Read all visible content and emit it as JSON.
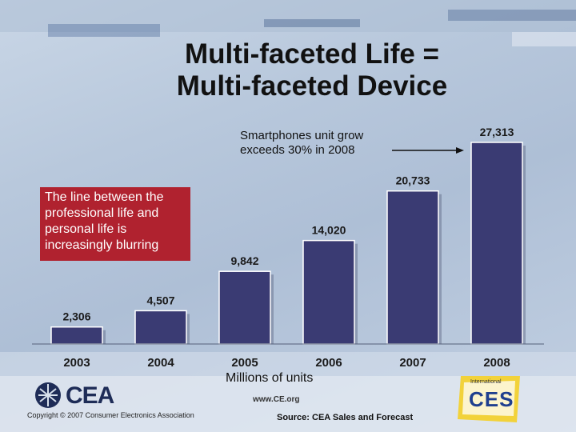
{
  "title_lines": [
    "Multi-faceted Life =",
    "Multi-faceted Device"
  ],
  "callout": {
    "lines": [
      "The line between the",
      "professional life and",
      "personal life is",
      "increasingly blurring"
    ],
    "color": "#b0222f"
  },
  "annotation": {
    "lines": [
      "Smartphones unit grow",
      "exceeds 30% in 2008"
    ]
  },
  "units_label": "Millions of units",
  "source": "Source: CEA Sales and Forecast",
  "footer": {
    "copyright": "Copyright © 2007 Consumer Electronics Association",
    "website": "www.CE.org",
    "cea_logo_text": "CEA",
    "ces_logo_text": "CES",
    "ces_logo_small": "International"
  },
  "chart_data": {
    "type": "bar",
    "categories": [
      "2003",
      "2004",
      "2005",
      "2006",
      "2007",
      "2008"
    ],
    "values": [
      2306,
      4507,
      9842,
      14020,
      20733,
      27313
    ],
    "value_labels": [
      "2,306",
      "4,507",
      "9,842",
      "14,020",
      "20,733",
      "27,313"
    ],
    "title": "",
    "xlabel": "",
    "ylabel": "",
    "ylim": [
      0,
      27313
    ],
    "bar_color": "#3a3b73",
    "grid": false,
    "legend": "none"
  }
}
